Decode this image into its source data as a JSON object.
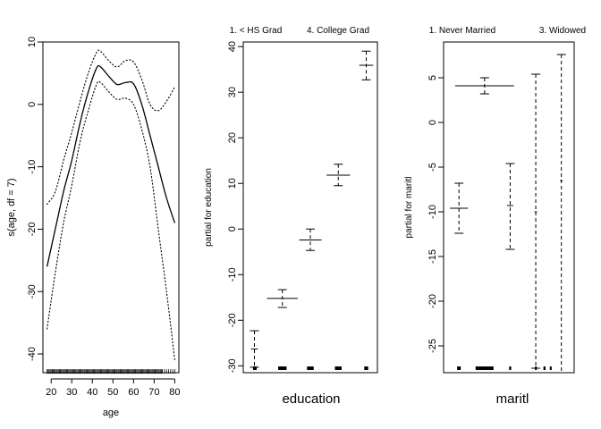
{
  "chart_data": [
    {
      "type": "line",
      "id": "age",
      "xlabel": "age",
      "ylabel": "s(age, df = 7)",
      "xlim": [
        16,
        82
      ],
      "ylim": [
        -43,
        10
      ],
      "xticks": [
        20,
        30,
        40,
        50,
        60,
        70,
        80
      ],
      "yticks": [
        -40,
        -30,
        -20,
        -10,
        0,
        10
      ],
      "series": [
        {
          "name": "fit",
          "style": "solid",
          "x": [
            18,
            22,
            26,
            30,
            34,
            38,
            42,
            44,
            48,
            52,
            56,
            60,
            64,
            68,
            72,
            76,
            80
          ],
          "y": [
            -26,
            -20,
            -14,
            -9,
            -3,
            2,
            5.8,
            6,
            4.5,
            3.2,
            3.5,
            3.3,
            0,
            -5,
            -10,
            -15,
            -19
          ]
        },
        {
          "name": "upper band",
          "style": "dotted",
          "x": [
            18,
            22,
            26,
            30,
            34,
            38,
            42,
            44,
            48,
            52,
            56,
            60,
            64,
            68,
            72,
            76,
            80
          ],
          "y": [
            -16,
            -14,
            -9,
            -4.5,
            0.5,
            5,
            8.3,
            8.5,
            7,
            6,
            7,
            6.8,
            4,
            0,
            -1,
            0.5,
            2.8
          ]
        },
        {
          "name": "lower band",
          "style": "dotted",
          "x": [
            18,
            22,
            26,
            30,
            34,
            38,
            42,
            44,
            48,
            52,
            56,
            60,
            64,
            68,
            72,
            76,
            80
          ],
          "y": [
            -36,
            -27,
            -19,
            -13,
            -6,
            -1,
            3.2,
            3.5,
            2,
            0.8,
            1,
            0,
            -4,
            -10,
            -20,
            -30,
            -41
          ]
        }
      ],
      "rug": {
        "y": -42.8,
        "from": 18,
        "to": 80,
        "dense_to": 74
      }
    },
    {
      "type": "scatter",
      "id": "education",
      "xlabel": "education",
      "ylabel": "partial for education",
      "top_labels": [
        "1. < HS Grad",
        "4. College Grad"
      ],
      "ylim": [
        -31.5,
        41
      ],
      "yticks": [
        -30,
        -20,
        -10,
        0,
        10,
        20,
        30,
        40
      ],
      "levels": [
        {
          "x": 1,
          "fit": -26.3,
          "lower": -30.3,
          "upper": -22.3,
          "halfwidth": 0.12
        },
        {
          "x": 2,
          "fit": -15.2,
          "lower": -17.2,
          "upper": -13.3,
          "halfwidth": 0.55
        },
        {
          "x": 3,
          "fit": -2.4,
          "lower": -4.7,
          "upper": 0.0,
          "halfwidth": 0.4
        },
        {
          "x": 4,
          "fit": 11.8,
          "lower": 9.5,
          "upper": 14.2,
          "halfwidth": 0.42
        },
        {
          "x": 5,
          "fit": 35.9,
          "lower": 32.7,
          "upper": 39.0,
          "halfwidth": 0.25
        }
      ],
      "xlim": [
        0.6,
        5.4
      ]
    },
    {
      "type": "scatter",
      "id": "maritl",
      "xlabel": "maritl",
      "ylabel": "partial for maritl",
      "top_labels": [
        "1. Never Married",
        "3. Widowed"
      ],
      "ylim": [
        -28,
        9
      ],
      "yticks": [
        -25,
        -20,
        -15,
        -10,
        -5,
        0,
        5
      ],
      "levels": [
        {
          "x": 1,
          "fit": -9.6,
          "lower": -12.4,
          "upper": -6.8,
          "halfwidth": 0.35
        },
        {
          "x": 2,
          "fit": 4.1,
          "lower": 3.2,
          "upper": 5.0,
          "halfwidth": 1.15
        },
        {
          "x": 3,
          "fit": -9.3,
          "lower": -14.2,
          "upper": -4.6,
          "halfwidth": 0.12
        },
        {
          "x": 4,
          "fit": -10.0,
          "lower": -27.5,
          "upper": 5.4,
          "halfwidth": 0.05
        },
        {
          "x": 5,
          "fit": -6.5,
          "lower": -28.0,
          "upper": 7.6,
          "halfwidth": 0.05
        }
      ],
      "xlim": [
        0.4,
        5.5
      ]
    }
  ]
}
